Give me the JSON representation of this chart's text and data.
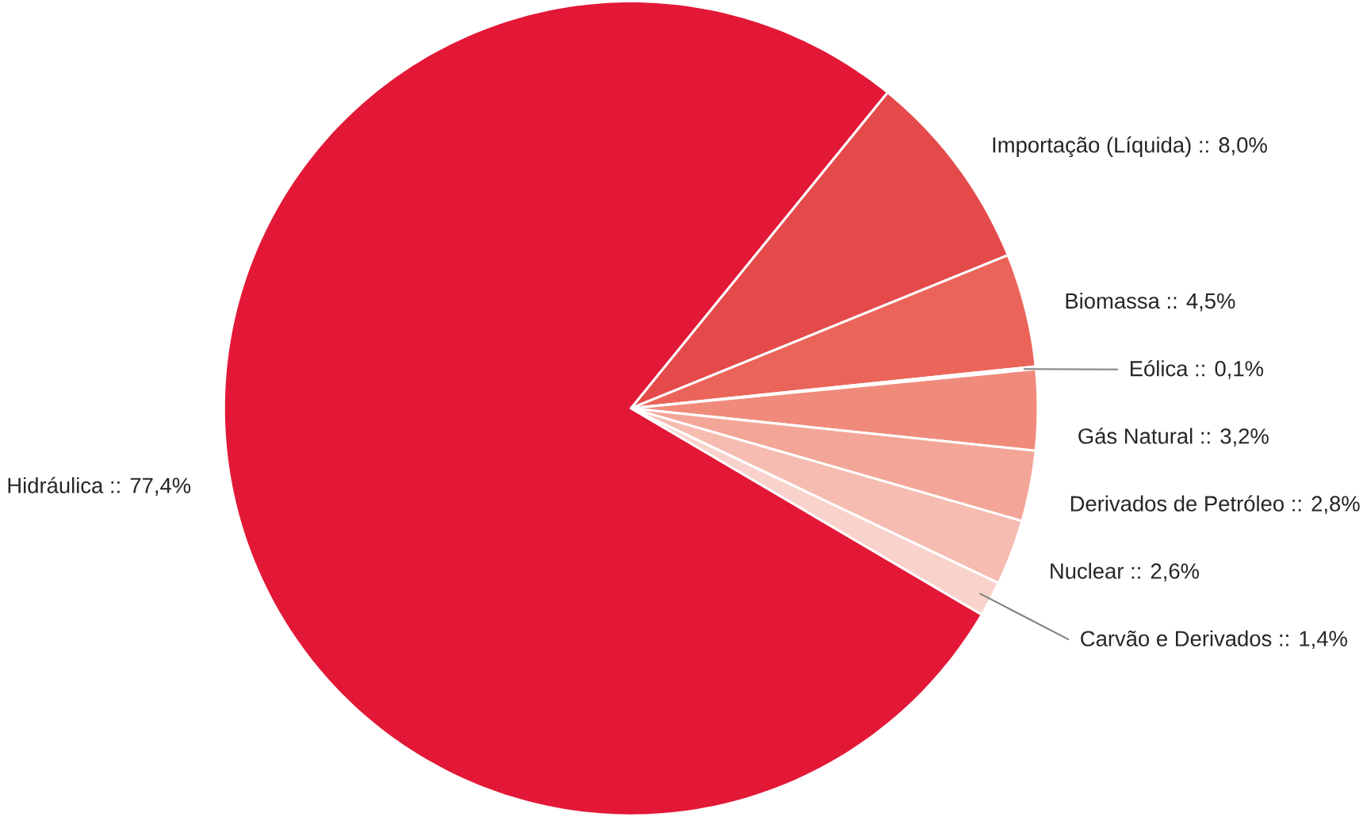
{
  "chart_data": {
    "type": "pie",
    "categories": [
      "Importação (Líquida)",
      "Biomassa",
      "Eólica",
      "Gás Natural",
      "Derivados de Petróleo",
      "Nuclear",
      "Carvão e Derivados",
      "Hidráulica"
    ],
    "values": [
      8.0,
      4.5,
      0.1,
      3.2,
      2.8,
      2.6,
      1.4,
      77.4
    ],
    "value_labels": [
      ":: 8,0%",
      ":: 4,5%",
      ":: 0,1%",
      ":: 3,2%",
      ":: 2,8%",
      ":: 2,6%",
      ":: 1,4%",
      ":: 77,4%"
    ],
    "colors": [
      "#e54a4b",
      "#eb6459",
      "#ee7c6c",
      "#f08b7b",
      "#f3a697",
      "#f6bcb1",
      "#f9d3cb",
      "#e31837"
    ]
  }
}
